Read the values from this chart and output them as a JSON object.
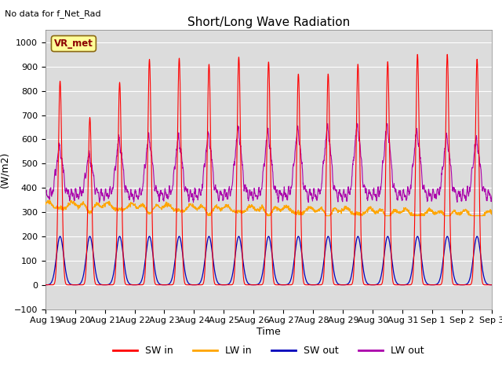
{
  "title": "Short/Long Wave Radiation",
  "ylabel": "(W/m2)",
  "xlabel": "Time",
  "ylim": [
    -100,
    1050
  ],
  "annotation_text": "No data for f_Net_Rad",
  "legend_label": "VR_met",
  "colors": {
    "SW_in": "#FF0000",
    "LW_in": "#FFA500",
    "SW_out": "#0000BB",
    "LW_out": "#AA00AA"
  },
  "background_color": "#DCDCDC",
  "tick_dates": [
    "Aug 19",
    "Aug 20",
    "Aug 21",
    "Aug 22",
    "Aug 23",
    "Aug 24",
    "Aug 25",
    "Aug 26",
    "Aug 27",
    "Aug 28",
    "Aug 29",
    "Aug 30",
    "Aug 31",
    "Sep 1",
    "Sep 2",
    "Sep 3"
  ],
  "n_days": 15,
  "n_points_per_day": 144
}
